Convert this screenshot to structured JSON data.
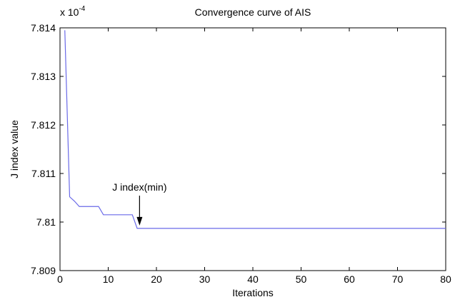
{
  "chart_data": {
    "type": "line",
    "title": "Convergence curve of AIS",
    "xlabel": "Iterations",
    "ylabel": "J index value",
    "multiplier_text": "x 10",
    "multiplier_exponent": "-4",
    "xlim": [
      0,
      80
    ],
    "ylim": [
      7.809,
      7.814
    ],
    "xticks": [
      0,
      10,
      20,
      30,
      40,
      50,
      60,
      70,
      80
    ],
    "yticks": [
      7.809,
      7.81,
      7.811,
      7.812,
      7.813,
      7.814
    ],
    "xtick_labels": [
      "0",
      "10",
      "20",
      "30",
      "40",
      "50",
      "60",
      "70",
      "80"
    ],
    "ytick_labels": [
      "7.809",
      "7.81",
      "7.811",
      "7.812",
      "7.813",
      "7.814"
    ],
    "grid": false,
    "line_color": "#6a6ae8",
    "series": [
      {
        "x": [
          1,
          2,
          3,
          4,
          5,
          6,
          7,
          8,
          9,
          10,
          11,
          12,
          13,
          14,
          15,
          16,
          17,
          18,
          20,
          30,
          40,
          50,
          60,
          70,
          80
        ],
        "y": [
          7.81395,
          7.81052,
          7.81043,
          7.81032,
          7.81032,
          7.81032,
          7.81032,
          7.81032,
          7.81015,
          7.81015,
          7.81015,
          7.81015,
          7.81015,
          7.81015,
          7.81015,
          7.80987,
          7.80987,
          7.80987,
          7.80987,
          7.80987,
          7.80987,
          7.80987,
          7.80987,
          7.80987,
          7.80987
        ]
      }
    ],
    "annotation": {
      "text": "J index(min)",
      "point": [
        16.5,
        7.80987
      ],
      "text_pos": [
        16.5,
        7.81072
      ]
    }
  }
}
